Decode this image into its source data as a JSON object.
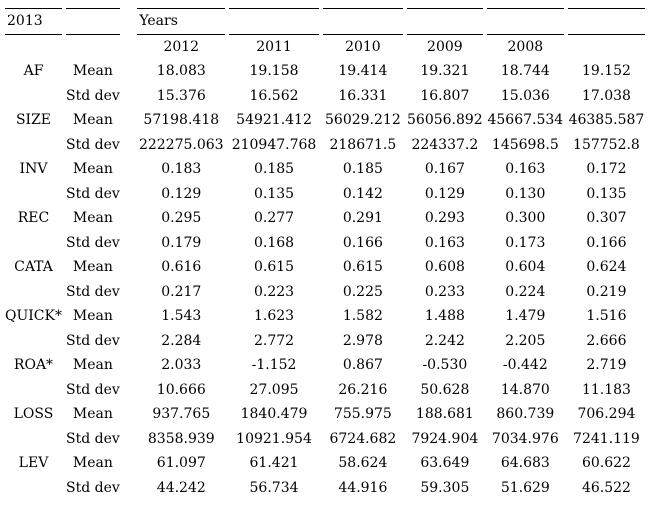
{
  "page": {
    "background": "#ffffff",
    "text_color": "#000000",
    "rule_color": "#000000"
  },
  "table": {
    "corner_label": "2013",
    "group_header": "Years",
    "year_columns": [
      "2012",
      "2011",
      "2010",
      "2009",
      "2008",
      ""
    ],
    "stat_labels": {
      "mean": "Mean",
      "std": "Std dev"
    },
    "rows": [
      {
        "variable": "AF",
        "mean": [
          "18.083",
          "19.158",
          "19.414",
          "19.321",
          "18.744",
          "19.152"
        ],
        "std": [
          "15.376",
          "16.562",
          "16.331",
          "16.807",
          "15.036",
          "17.038"
        ]
      },
      {
        "variable": "SIZE",
        "mean": [
          "57198.418",
          "54921.412",
          "56029.212",
          "56056.892",
          "45667.534",
          "46385.587"
        ],
        "std": [
          "222275.063",
          "210947.768",
          "218671.5",
          "224337.2",
          "145698.5",
          "157752.8"
        ]
      },
      {
        "variable": "INV",
        "mean": [
          "0.183",
          "0.185",
          "0.185",
          "0.167",
          "0.163",
          "0.172"
        ],
        "std": [
          "0.129",
          "0.135",
          "0.142",
          "0.129",
          "0.130",
          "0.135"
        ]
      },
      {
        "variable": "REC",
        "mean": [
          "0.295",
          "0.277",
          "0.291",
          "0.293",
          "0.300",
          "0.307"
        ],
        "std": [
          "0.179",
          "0.168",
          "0.166",
          "0.163",
          "0.173",
          "0.166"
        ]
      },
      {
        "variable": "CATA",
        "mean": [
          "0.616",
          "0.615",
          "0.615",
          "0.608",
          "0.604",
          "0.624"
        ],
        "std": [
          "0.217",
          "0.223",
          "0.225",
          "0.233",
          "0.224",
          "0.219"
        ]
      },
      {
        "variable": "QUICK*",
        "mean": [
          "1.543",
          "1.623",
          "1.582",
          "1.488",
          "1.479",
          "1.516"
        ],
        "std": [
          "2.284",
          "2.772",
          "2.978",
          "2.242",
          "2.205",
          "2.666"
        ]
      },
      {
        "variable": "ROA*",
        "mean": [
          "2.033",
          "-1.152",
          "0.867",
          "-0.530",
          "-0.442",
          "2.719"
        ],
        "std": [
          "10.666",
          "27.095",
          "26.216",
          "50.628",
          "14.870",
          "11.183"
        ]
      },
      {
        "variable": "LOSS",
        "mean": [
          "937.765",
          "1840.479",
          "755.975",
          "188.681",
          "860.739",
          "706.294"
        ],
        "std": [
          "8358.939",
          "10921.954",
          "6724.682",
          "7924.904",
          "7034.976",
          "7241.119"
        ]
      },
      {
        "variable": "LEV",
        "mean": [
          "61.097",
          "61.421",
          "58.624",
          "63.649",
          "64.683",
          "60.622"
        ],
        "std": [
          "44.242",
          "56.734",
          "44.916",
          "59.305",
          "51.629",
          "46.522"
        ]
      }
    ]
  }
}
